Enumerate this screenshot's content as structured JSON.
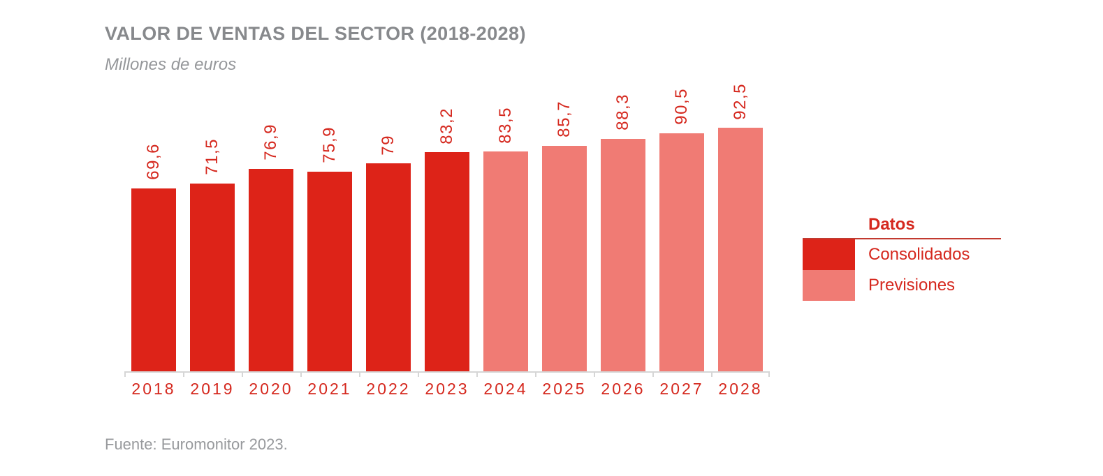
{
  "header": {
    "title": "VALOR DE VENTAS DEL SECTOR (2018-2028)",
    "subtitle": "Millones de euros"
  },
  "chart_data": {
    "type": "bar",
    "title": "VALOR DE VENTAS DEL SECTOR (2018-2028)",
    "subtitle": "Millones de euros",
    "unit": "Millones de euros",
    "categories": [
      "2018",
      "2019",
      "2020",
      "2021",
      "2022",
      "2023",
      "2024",
      "2025",
      "2026",
      "2027",
      "2028"
    ],
    "values": [
      69.6,
      71.5,
      76.9,
      75.9,
      79,
      83.2,
      83.5,
      85.7,
      88.3,
      90.5,
      92.5
    ],
    "value_labels": [
      "69,6",
      "71,5",
      "76,9",
      "75,9",
      "79",
      "83,2",
      "83,5",
      "85,7",
      "88,3",
      "90,5",
      "92,5"
    ],
    "series": [
      {
        "name": "Consolidados",
        "categories": [
          "2018",
          "2019",
          "2020",
          "2021",
          "2022",
          "2023"
        ],
        "values": [
          69.6,
          71.5,
          76.9,
          75.9,
          79,
          83.2
        ],
        "color": "#DD2318"
      },
      {
        "name": "Previsiones",
        "categories": [
          "2024",
          "2025",
          "2026",
          "2027",
          "2028"
        ],
        "values": [
          83.5,
          85.7,
          88.3,
          90.5,
          92.5
        ],
        "color": "#F07B74"
      }
    ],
    "ylim": [
      0,
      104
    ],
    "xlabel": "",
    "ylabel": "",
    "grid": false,
    "legend_position": "right",
    "value_label_rotation": 90
  },
  "legend": {
    "title": "Datos",
    "items": [
      {
        "label": "Consolidados",
        "color": "#DD2318"
      },
      {
        "label": "Previsiones",
        "color": "#F07B74"
      }
    ]
  },
  "footer": {
    "source": "Fuente: Euromonitor 2023."
  },
  "colors": {
    "consolidated": "#DD2318",
    "forecast": "#F07B74",
    "label_red": "#D5281E",
    "title_gray": "#87898C",
    "subtitle_gray": "#95979A",
    "source_gray": "#97999C",
    "axis_gray": "#D6D6D6"
  }
}
